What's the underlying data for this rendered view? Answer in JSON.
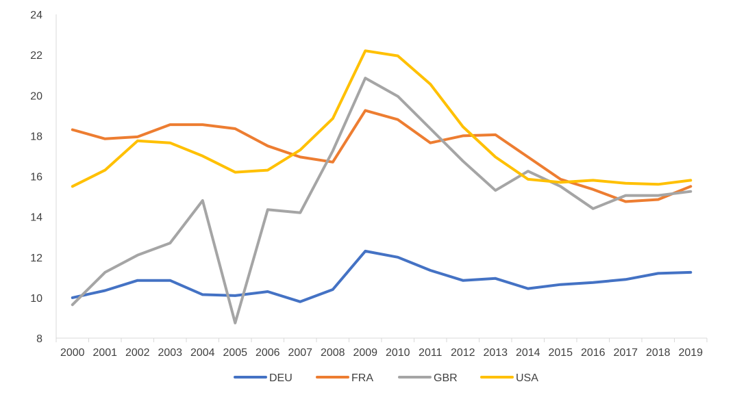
{
  "chart_data": {
    "type": "line",
    "title": "",
    "xlabel": "",
    "ylabel": "",
    "x": [
      "2000",
      "2001",
      "2002",
      "2003",
      "2004",
      "2005",
      "2006",
      "2007",
      "2008",
      "2009",
      "2010",
      "2011",
      "2012",
      "2013",
      "2014",
      "2015",
      "2016",
      "2017",
      "2018",
      "2019"
    ],
    "ylim": [
      8,
      24
    ],
    "yticks": [
      8,
      10,
      12,
      14,
      16,
      18,
      20,
      22,
      24
    ],
    "grid": false,
    "legend_position": "bottom",
    "series": [
      {
        "name": "DEU",
        "color": "#4472C4",
        "values": [
          10.0,
          10.35,
          10.85,
          10.85,
          10.15,
          10.1,
          10.3,
          9.8,
          10.4,
          12.3,
          12.0,
          11.35,
          10.85,
          10.95,
          10.45,
          10.65,
          10.75,
          10.9,
          11.2,
          11.25
        ]
      },
      {
        "name": "FRA",
        "color": "#ED7D31",
        "values": [
          18.3,
          17.85,
          17.95,
          18.55,
          18.55,
          18.35,
          17.5,
          16.95,
          16.7,
          19.25,
          18.8,
          17.65,
          18.0,
          18.05,
          16.95,
          15.85,
          15.35,
          14.75,
          14.85,
          15.5
        ]
      },
      {
        "name": "GBR",
        "color": "#A5A5A5",
        "values": [
          9.65,
          11.25,
          12.1,
          12.7,
          14.8,
          8.75,
          14.35,
          14.2,
          17.25,
          20.85,
          19.95,
          18.35,
          16.75,
          15.3,
          16.25,
          15.5,
          14.4,
          15.05,
          15.05,
          15.25
        ]
      },
      {
        "name": "USA",
        "color": "#FFC000",
        "values": [
          15.5,
          16.3,
          17.75,
          17.65,
          17.0,
          16.2,
          16.3,
          17.3,
          18.85,
          22.2,
          21.95,
          20.55,
          18.45,
          16.95,
          15.85,
          15.7,
          15.8,
          15.65,
          15.6,
          15.8
        ]
      }
    ]
  }
}
